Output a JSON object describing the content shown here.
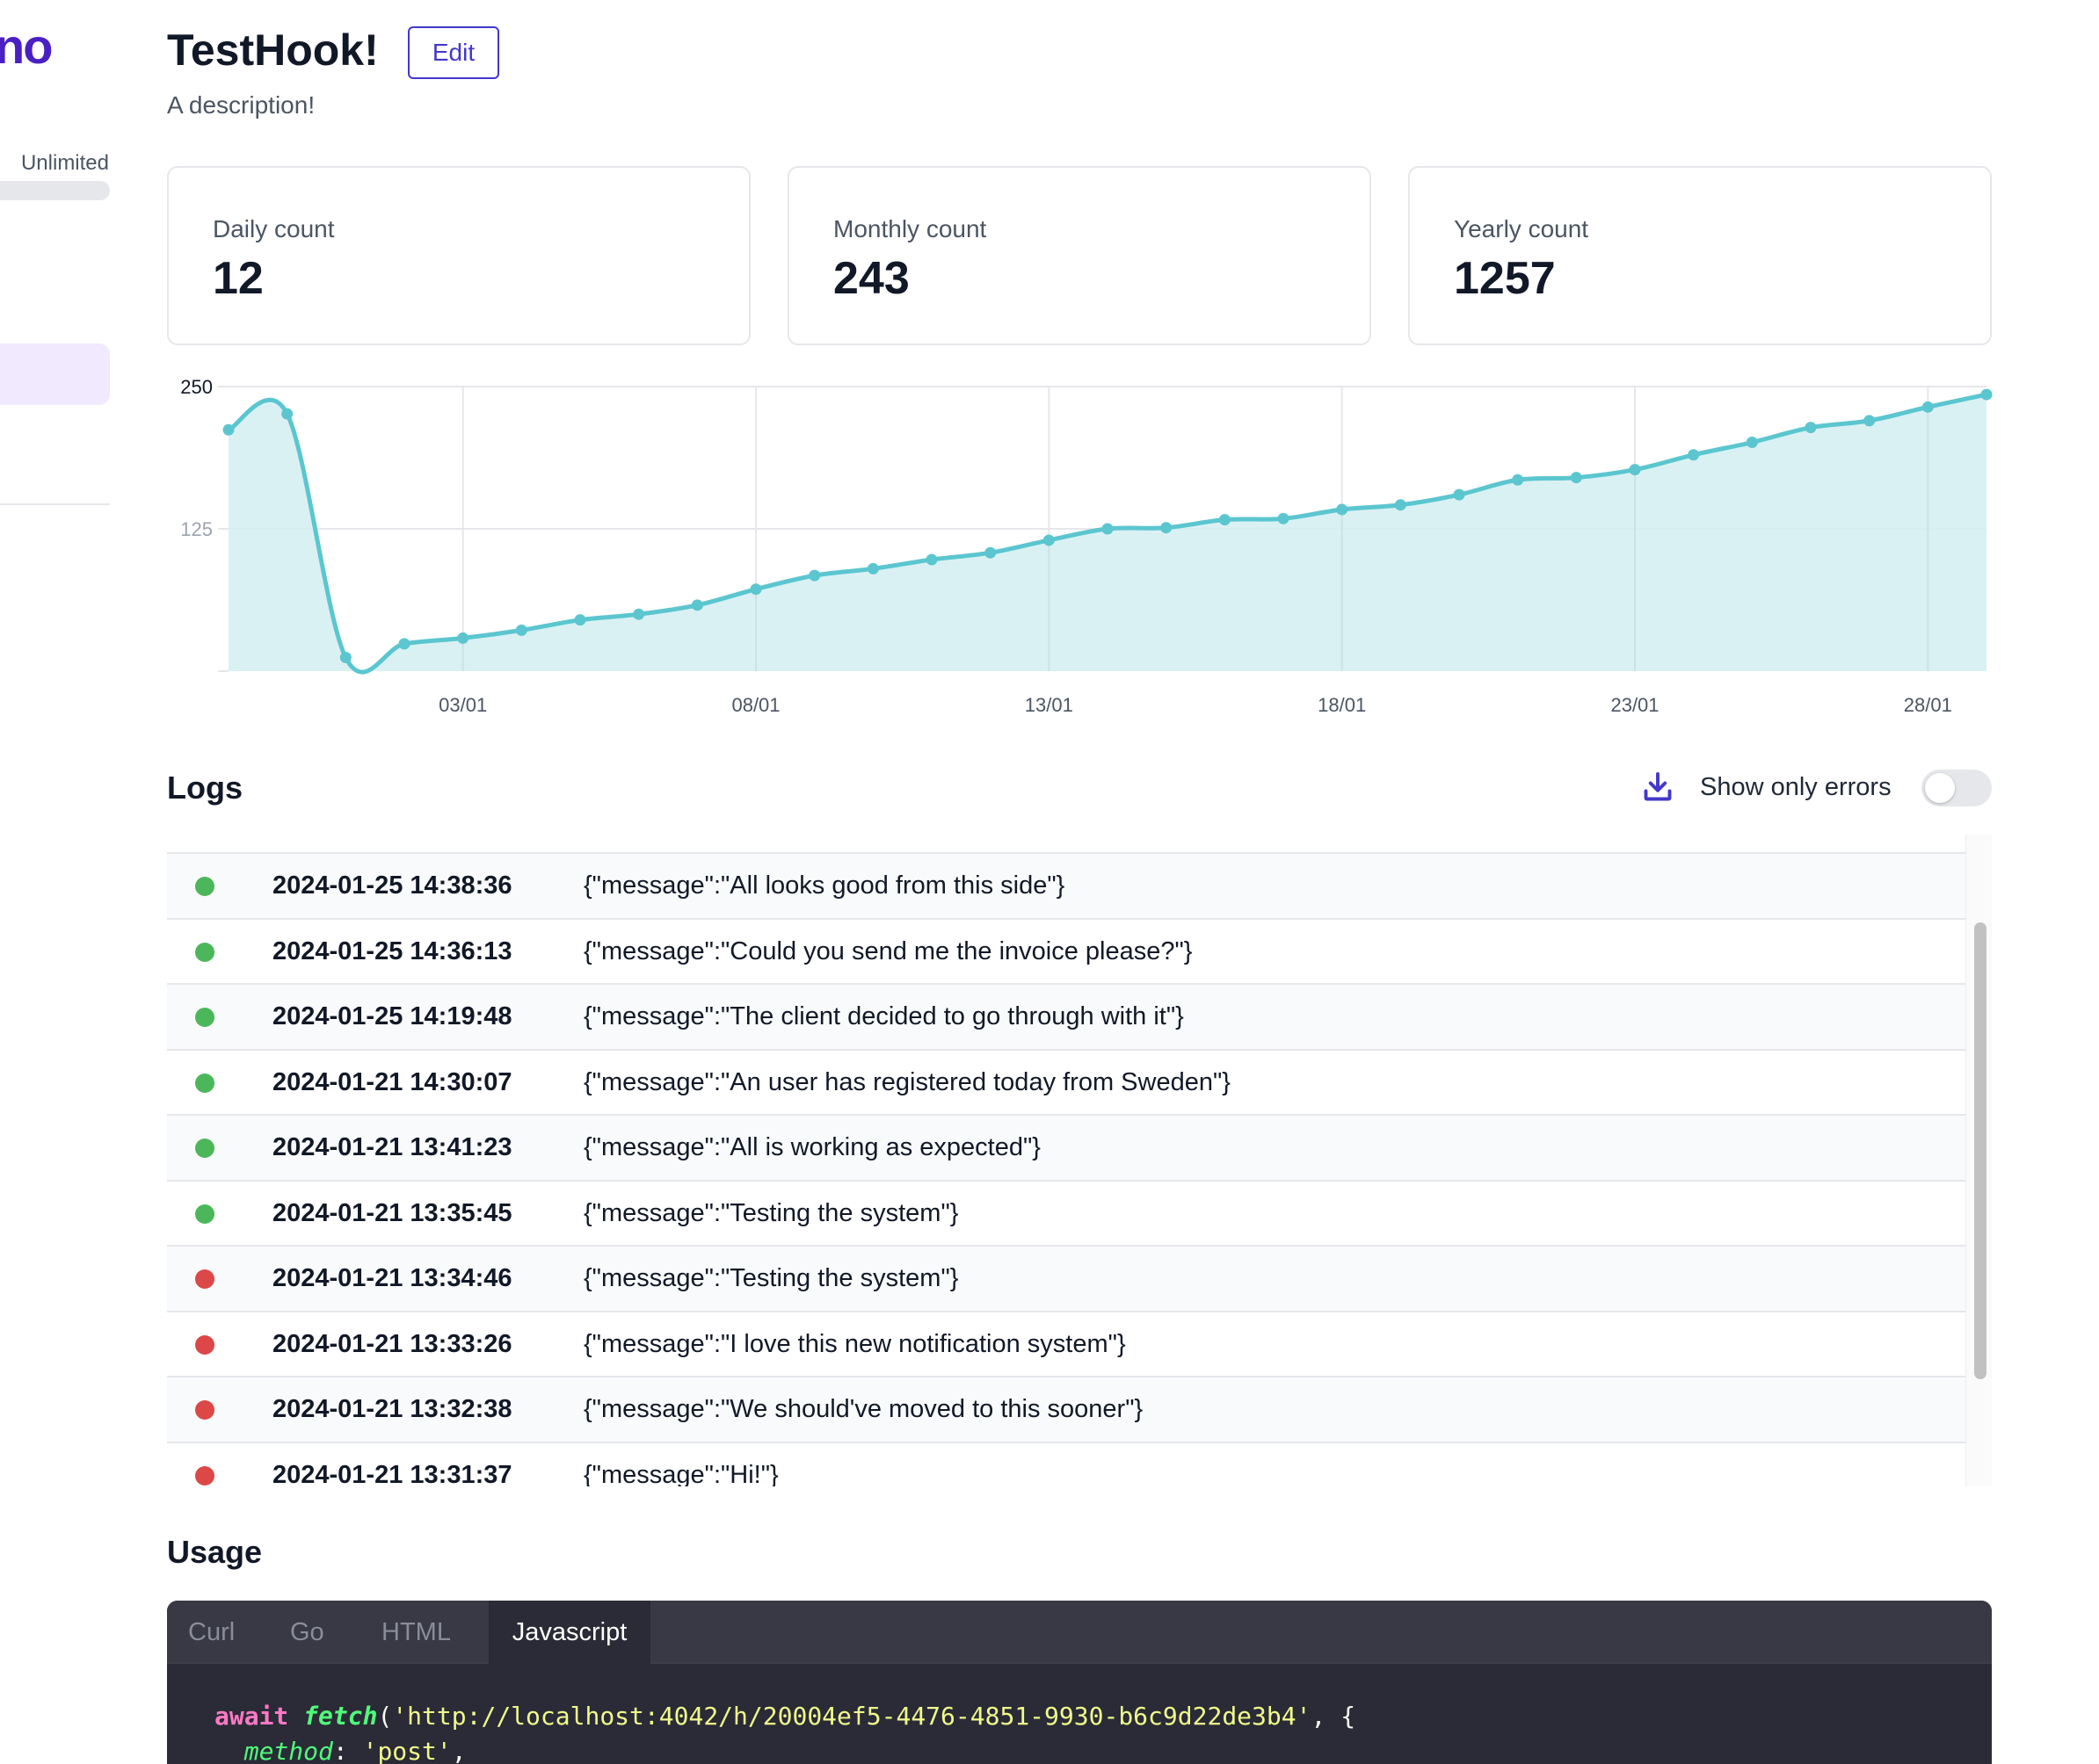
{
  "sidebar": {
    "logo_fragment": "no",
    "plan_label": "Unlimited",
    "plan_usage_fraction": 1.0
  },
  "header": {
    "title": "TestHook!",
    "edit_label": "Edit",
    "description": "A description!"
  },
  "stats": [
    {
      "label": "Daily count",
      "value": "12"
    },
    {
      "label": "Monthly count",
      "value": "243"
    },
    {
      "label": "Yearly count",
      "value": "1257"
    }
  ],
  "chart_data": {
    "type": "area",
    "title": "",
    "xlabel": "",
    "ylabel": "",
    "ylim": [
      0,
      250
    ],
    "y_ticks": [
      "250",
      "125"
    ],
    "x_tick_labels": [
      "03/01",
      "08/01",
      "13/01",
      "18/01",
      "23/01",
      "28/01"
    ],
    "x_tick_indices": [
      4,
      9,
      14,
      19,
      24,
      29
    ],
    "series": [
      {
        "name": "count",
        "color": "#5bc6cf",
        "fill": "#d3eef1",
        "values": [
          212,
          226,
          12,
          24,
          29,
          36,
          45,
          50,
          58,
          72,
          84,
          90,
          98,
          104,
          115,
          125,
          126,
          133,
          134,
          142,
          146,
          155,
          168,
          170,
          177,
          190,
          201,
          214,
          220,
          232,
          243
        ]
      }
    ]
  },
  "logs": {
    "title": "Logs",
    "download_icon": "download-icon",
    "toggle_label": "Show only errors",
    "toggle_on": false,
    "colors": {
      "ok": "#4cb75a",
      "err": "#dc4747"
    },
    "rows": [
      {
        "status": "ok",
        "time": "2024-01-25 14:38:36",
        "message": "{\"message\":\"All looks good from this side\"}"
      },
      {
        "status": "ok",
        "time": "2024-01-25 14:36:13",
        "message": "{\"message\":\"Could you send me the invoice please?\"}"
      },
      {
        "status": "ok",
        "time": "2024-01-25 14:19:48",
        "message": "{\"message\":\"The client decided to go through with it\"}"
      },
      {
        "status": "ok",
        "time": "2024-01-21 14:30:07",
        "message": "{\"message\":\"An user has registered today from Sweden\"}"
      },
      {
        "status": "ok",
        "time": "2024-01-21 13:41:23",
        "message": "{\"message\":\"All is working as expected\"}"
      },
      {
        "status": "ok",
        "time": "2024-01-21 13:35:45",
        "message": "{\"message\":\"Testing the system\"}"
      },
      {
        "status": "err",
        "time": "2024-01-21 13:34:46",
        "message": "{\"message\":\"Testing the system\"}"
      },
      {
        "status": "err",
        "time": "2024-01-21 13:33:26",
        "message": "{\"message\":\"I love this new notification system\"}"
      },
      {
        "status": "err",
        "time": "2024-01-21 13:32:38",
        "message": "{\"message\":\"We should've moved to this sooner\"}"
      },
      {
        "status": "err",
        "time": "2024-01-21 13:31:37",
        "message": "{\"message\":\"Hi!\"}"
      }
    ]
  },
  "usage": {
    "title": "Usage",
    "tabs": [
      "Curl",
      "Go",
      "HTML",
      "Javascript"
    ],
    "active_tab": "Javascript",
    "code": {
      "await_kw": "await",
      "fetch_fn": "fetch",
      "open_paren": "(",
      "url": "'http://localhost:4042/h/20004ef5-4476-4851-9930-b6c9d22de3b4'",
      "after_url": ", {",
      "method_key": "method",
      "colon": ": ",
      "method_value": "'post'",
      "comma": ","
    }
  }
}
